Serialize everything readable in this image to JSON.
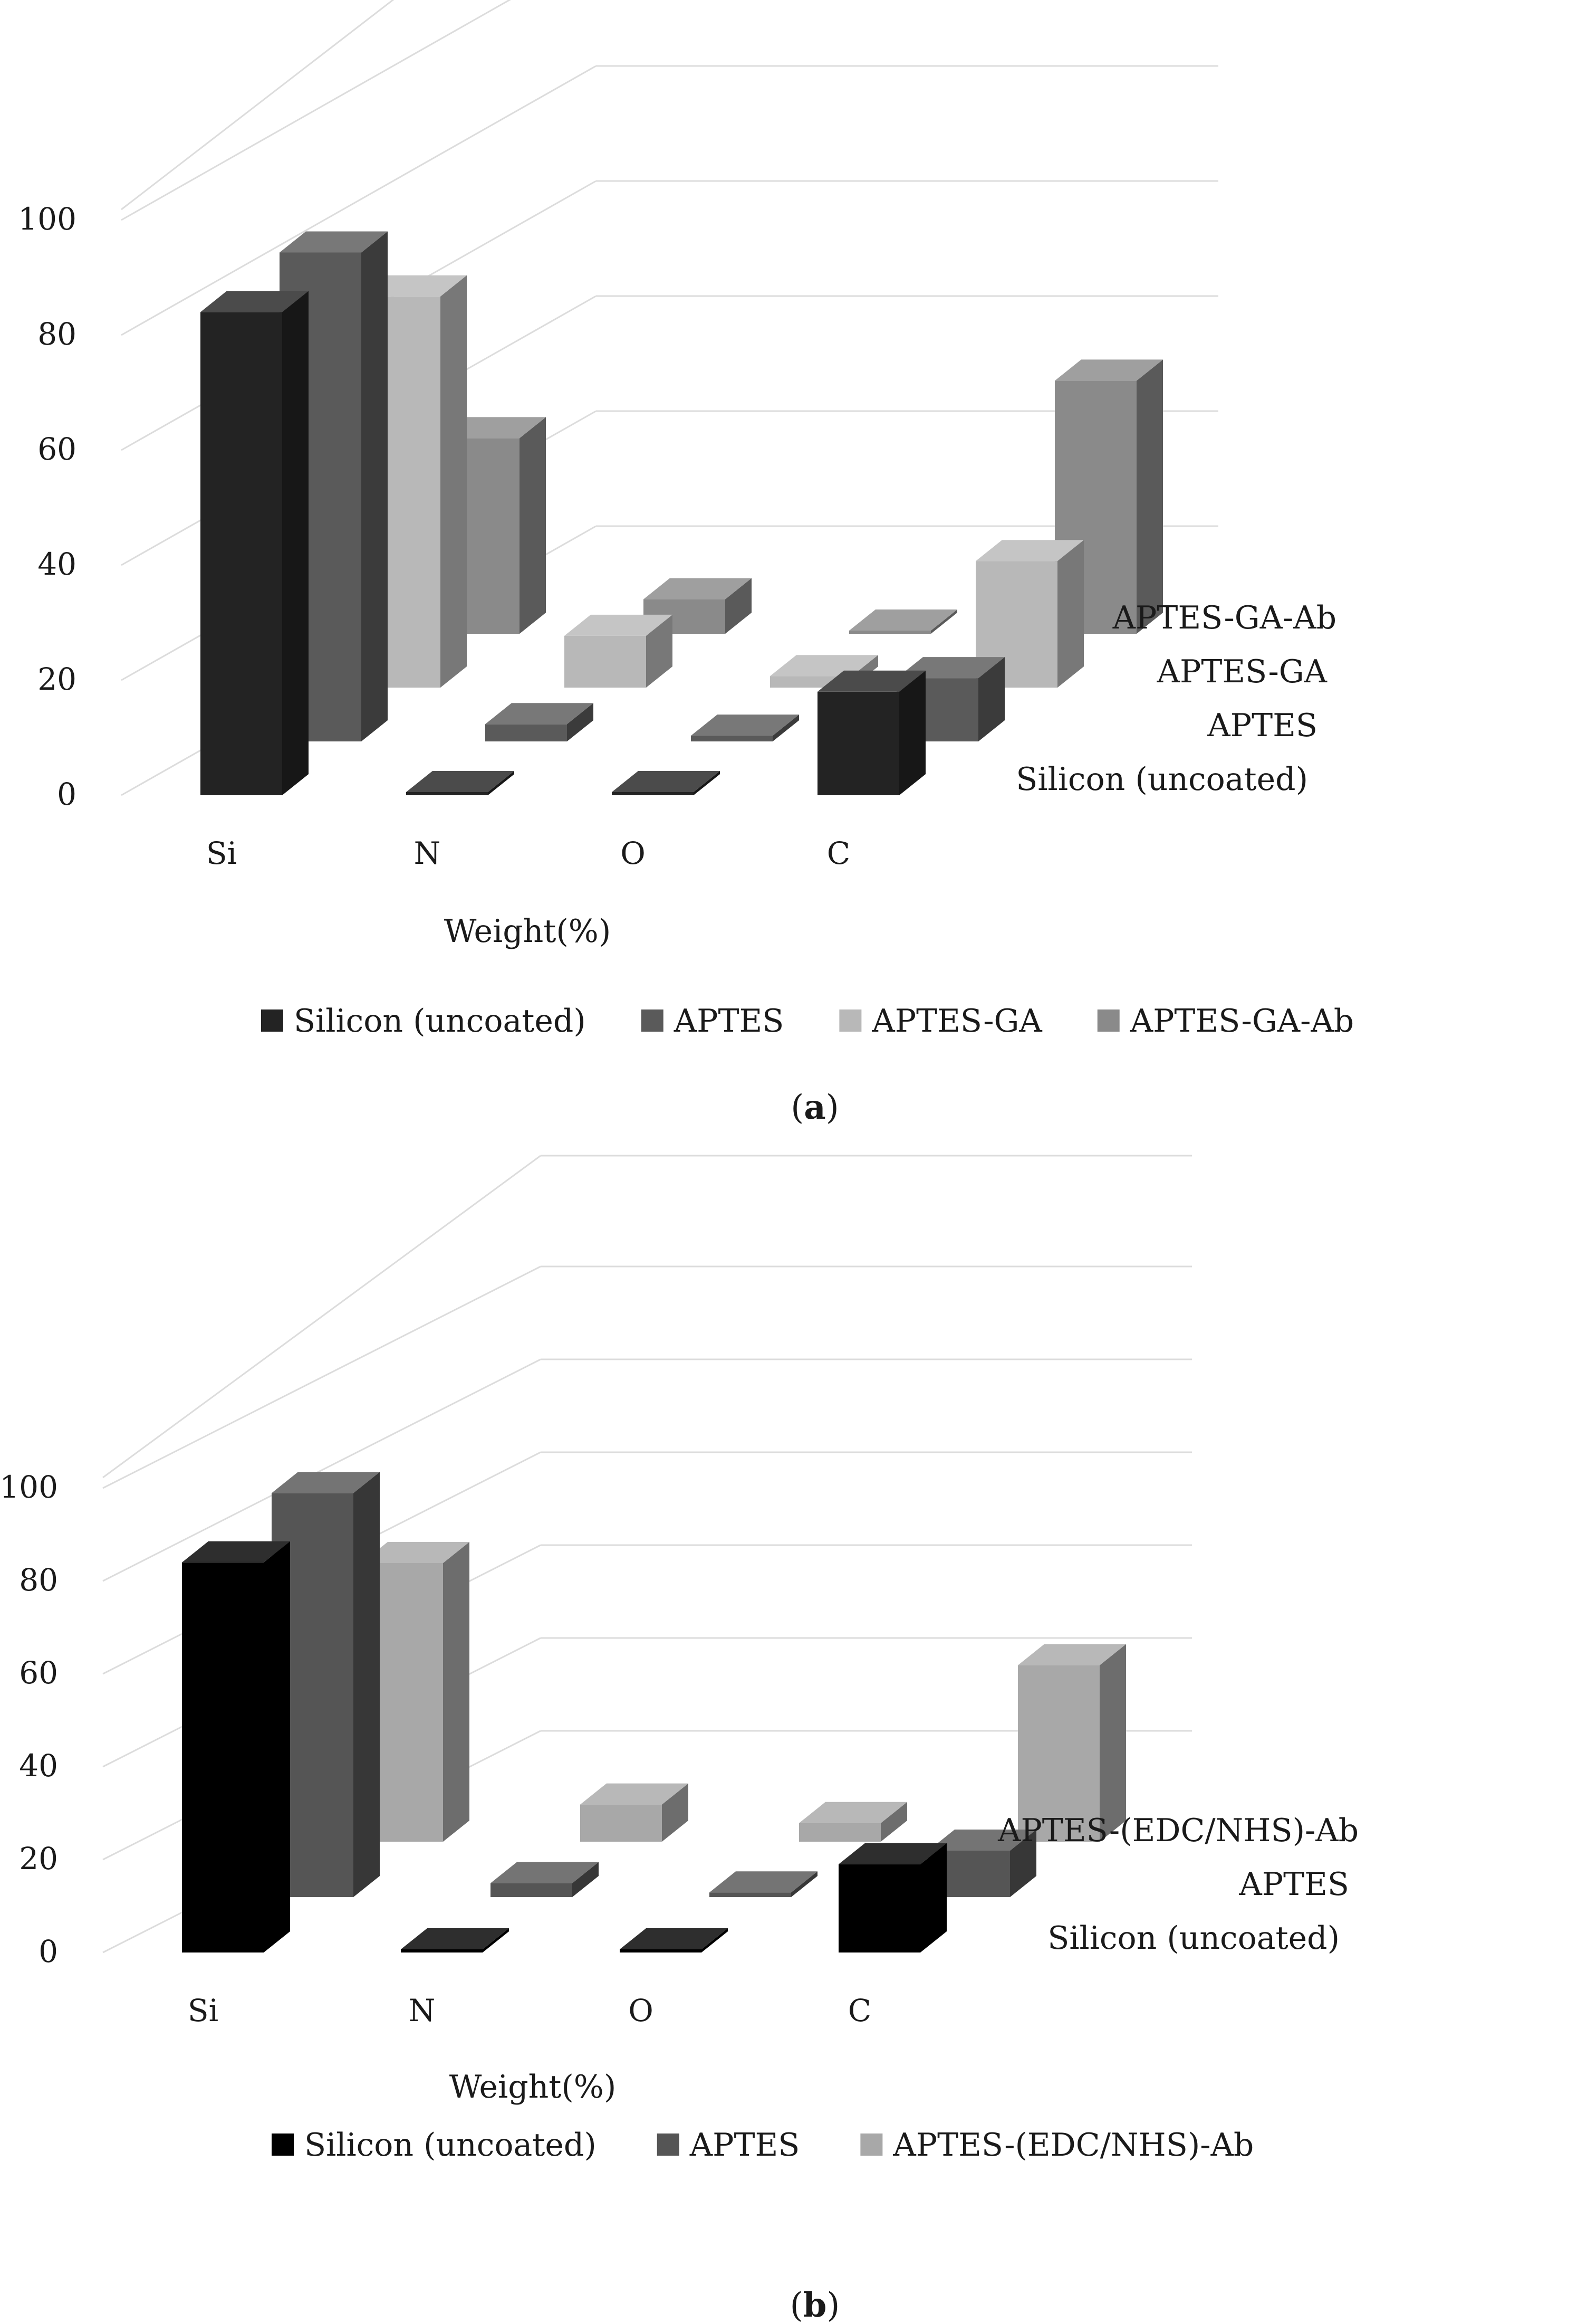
{
  "chart_data": [
    {
      "type": "bar",
      "subtype": "3d-column",
      "caption_letter": "a",
      "categories": [
        "Si",
        "N",
        "O",
        "C"
      ],
      "xlabel": "Weight(%)",
      "ylabel": "",
      "ylim": [
        0,
        100
      ],
      "yticks": [
        0,
        20,
        40,
        60,
        80,
        100
      ],
      "legend_position": "bottom",
      "series": [
        {
          "name": "Silicon (uncoated)",
          "color": "#232323",
          "values": [
            84,
            0,
            0,
            18
          ]
        },
        {
          "name": "APTES",
          "color": "#5a5a5a",
          "values": [
            85,
            3,
            1,
            11
          ]
        },
        {
          "name": "APTES-GA",
          "color": "#b8b8b8",
          "values": [
            68,
            9,
            2,
            22
          ]
        },
        {
          "name": "APTES-GA-Ab",
          "color": "#8a8a8a",
          "values": [
            34,
            6,
            0,
            44
          ]
        }
      ]
    },
    {
      "type": "bar",
      "subtype": "3d-column",
      "caption_letter": "b",
      "categories": [
        "Si",
        "N",
        "O",
        "C"
      ],
      "xlabel": "Weight(%)",
      "ylabel": "",
      "ylim": [
        0,
        100
      ],
      "yticks": [
        0,
        20,
        40,
        60,
        80,
        100
      ],
      "legend_position": "bottom",
      "series": [
        {
          "name": "Silicon (uncoated)",
          "color": "#000000",
          "values": [
            84,
            0,
            0,
            19
          ]
        },
        {
          "name": "APTES",
          "color": "#555555",
          "values": [
            87,
            3,
            1,
            10
          ]
        },
        {
          "name": "APTES-(EDC/NHS)-Ab",
          "color": "#a8a8a8",
          "values": [
            60,
            8,
            4,
            38
          ]
        }
      ]
    }
  ]
}
